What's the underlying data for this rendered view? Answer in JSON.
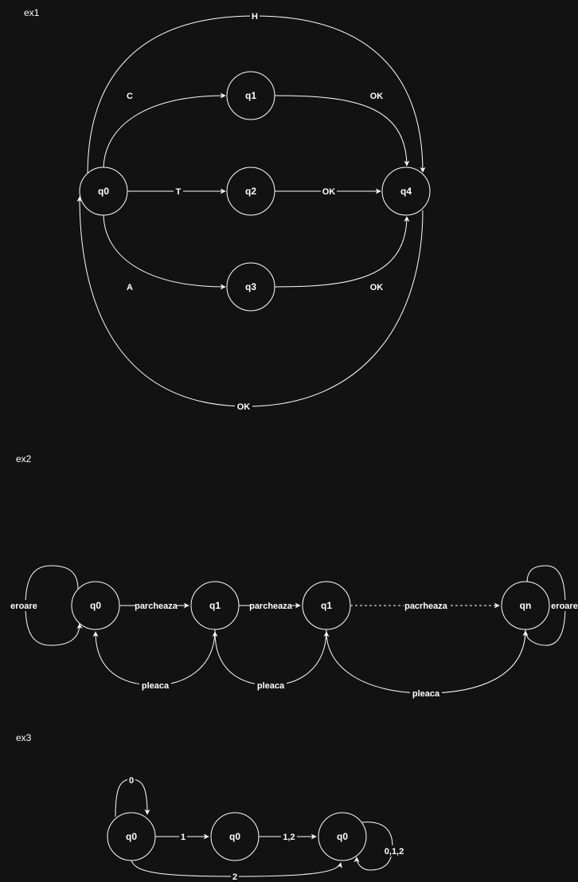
{
  "ex1": {
    "title": "ex1",
    "states": {
      "q0": "q0",
      "q1": "q1",
      "q2": "q2",
      "q3": "q3",
      "q4": "q4"
    },
    "edges": {
      "q0_q1": "C",
      "q0_q2": "T",
      "q0_q3": "A",
      "q1_q4": "OK",
      "q2_q4": "OK",
      "q3_q4": "OK",
      "q0_q4_top": "H",
      "q4_q0_bottom": "OK"
    }
  },
  "ex2": {
    "title": "ex2",
    "states": {
      "s0": "q0",
      "s1": "q1",
      "s2": "q1",
      "s3": "qn"
    },
    "edges": {
      "loop_s0": "eroare",
      "s0_s1": "parcheaza",
      "s1_s2": "parcheaza",
      "s2_s3": "pacrheaza",
      "loop_s3": "eroare",
      "s1_s0": "pleaca",
      "s2_s1": "pleaca",
      "s3_s2": "pleaca"
    }
  },
  "ex3": {
    "title": "ex3",
    "states": {
      "a": "q0",
      "b": "q0",
      "c": "q0"
    },
    "edges": {
      "loop_a": "0",
      "a_b": "1",
      "b_c": "1,2",
      "a_c": "2",
      "loop_c": "0,1,2"
    }
  }
}
